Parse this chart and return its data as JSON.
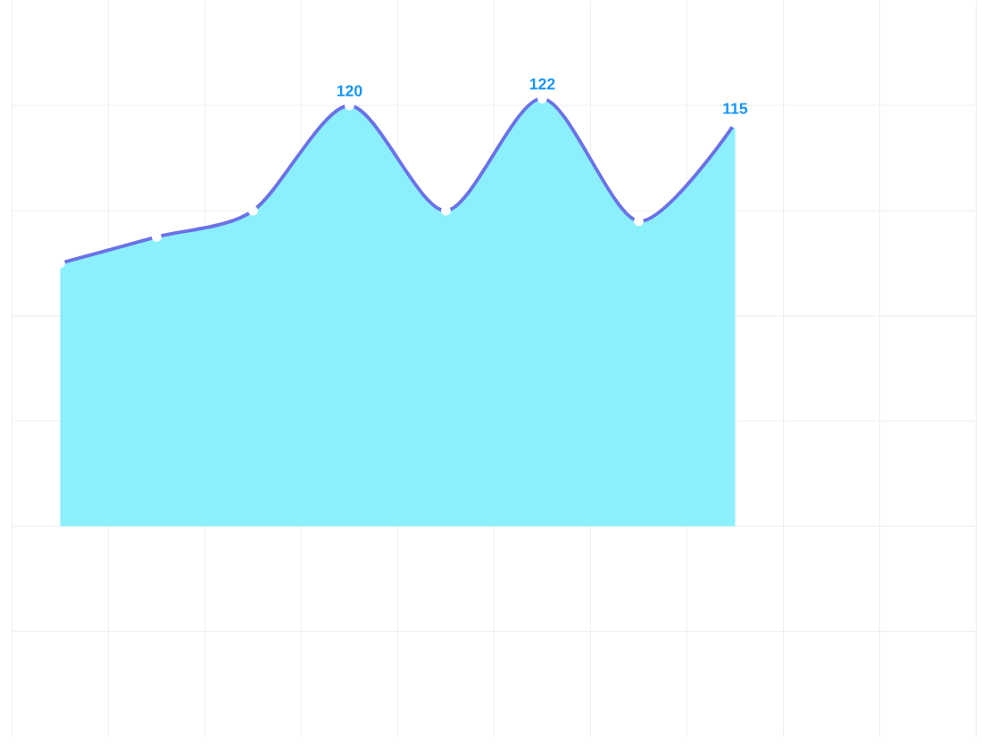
{
  "chart_data": {
    "type": "area",
    "categories": [
      null,
      null,
      null,
      null,
      null,
      null,
      null,
      null
    ],
    "values": [
      75,
      82.5,
      90,
      120,
      90,
      122,
      87,
      115
    ],
    "value_labels": [
      null,
      null,
      null,
      "120",
      null,
      "122",
      null,
      "115"
    ],
    "color": "#6b72e6",
    "ylim": [
      -60,
      150
    ],
    "yticks": [
      {
        "value": -30,
        "label": null
      },
      {
        "value": 0,
        "label": null
      },
      {
        "value": 30,
        "label": null
      },
      {
        "value": 60,
        "label": null
      },
      {
        "value": 90,
        "label": null
      },
      {
        "value": 120,
        "label": null
      }
    ],
    "grid": true,
    "marker": "circle",
    "line_style": "solid"
  }
}
